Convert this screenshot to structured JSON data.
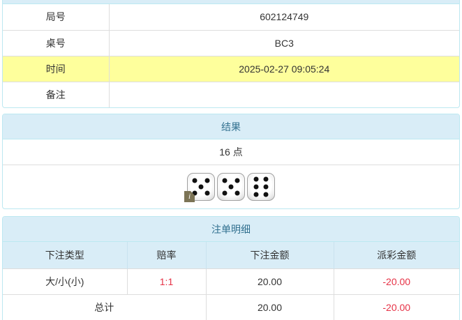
{
  "colors": {
    "panel_border": "#bce8f1",
    "heading_bg": "#d9edf7",
    "heading_text": "#31708f",
    "highlight_bg": "#feff9c",
    "table_border": "#dddddd",
    "body_text": "#333333",
    "negative": "#e63246"
  },
  "info_table": {
    "rows": [
      {
        "label": "局号",
        "value": "602124749",
        "highlight": false
      },
      {
        "label": "桌号",
        "value": "BC3",
        "highlight": false
      },
      {
        "label": "时间",
        "value": "2025-02-27 09:05:24",
        "highlight": true
      },
      {
        "label": "备注",
        "value": "",
        "highlight": false
      }
    ]
  },
  "result_panel": {
    "title": "结果",
    "points": "16 点",
    "dice": [
      5,
      5,
      6
    ],
    "info_badge": "i"
  },
  "bets_panel": {
    "title": "注单明细",
    "columns": [
      "下注类型",
      "赔率",
      "下注金额",
      "派彩金额"
    ],
    "rows": [
      {
        "type": "大/小(小)",
        "odds": "1:1",
        "amount": "20.00",
        "payout": "-20.00"
      }
    ],
    "total": {
      "label": "总计",
      "amount": "20.00",
      "payout": "-20.00"
    }
  }
}
